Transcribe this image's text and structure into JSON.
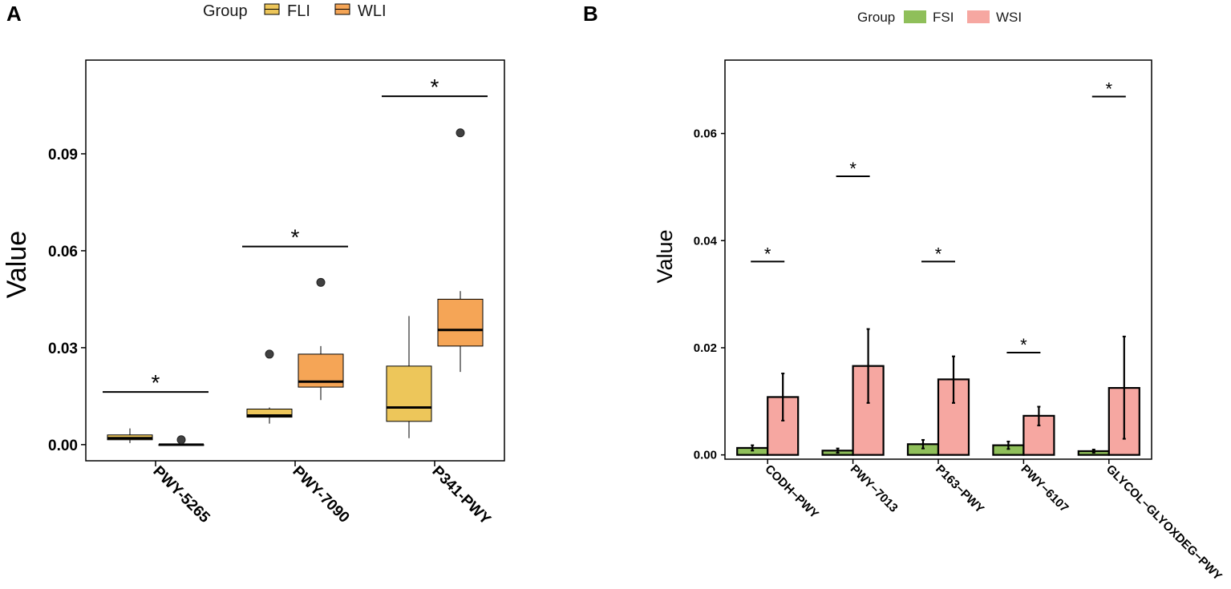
{
  "chart_data": [
    {
      "panel": "A",
      "type": "box",
      "legend_title": "Group",
      "legend": [
        {
          "name": "FLI",
          "color": "#EDC65A"
        },
        {
          "name": "WLI",
          "color": "#F5A556"
        }
      ],
      "ylabel": "Value",
      "ylim": [
        -0.005,
        0.119
      ],
      "yticks": [
        0.0,
        0.03,
        0.06,
        0.09
      ],
      "ytick_labels": [
        "0.00",
        "0.03",
        "0.06",
        "0.09"
      ],
      "categories": [
        "PWY-5265",
        "PWY-7090",
        "P341-PWY"
      ],
      "groups": [
        {
          "name": "FLI",
          "color": "#EDC65A",
          "boxes": [
            {
              "min": 0.0005,
              "q1": 0.0015,
              "median": 0.002,
              "q3": 0.003,
              "max": 0.005,
              "outliers": []
            },
            {
              "min": 0.0065,
              "q1": 0.0085,
              "median": 0.009,
              "q3": 0.011,
              "max": 0.0115,
              "outliers": [
                0.028
              ]
            },
            {
              "min": 0.002,
              "q1": 0.0072,
              "median": 0.0115,
              "q3": 0.0243,
              "max": 0.0398,
              "outliers": []
            }
          ]
        },
        {
          "name": "WLI",
          "color": "#F5A556",
          "boxes": [
            {
              "min": 0.0,
              "q1": 0.0,
              "median": 0.0,
              "q3": 0.0,
              "max": 0.0,
              "outliers": [
                0.0015
              ]
            },
            {
              "min": 0.0138,
              "q1": 0.0178,
              "median": 0.0195,
              "q3": 0.028,
              "max": 0.0305,
              "outliers": [
                0.0502
              ]
            },
            {
              "min": 0.0225,
              "q1": 0.0305,
              "median": 0.0355,
              "q3": 0.045,
              "max": 0.0475,
              "outliers": [
                0.0965
              ]
            }
          ]
        }
      ],
      "annotations": [
        {
          "category": "PWY-5265",
          "label": "*",
          "y": 0.0163
        },
        {
          "category": "PWY-7090",
          "label": "*",
          "y": 0.0613
        },
        {
          "category": "P341-PWY",
          "label": "*",
          "y": 0.1078
        }
      ]
    },
    {
      "panel": "B",
      "type": "bar",
      "legend_title": "Group",
      "legend": [
        {
          "name": "FSI",
          "color": "#8FBF5A"
        },
        {
          "name": "WSI",
          "color": "#F6A7A1"
        }
      ],
      "ylabel": "Value",
      "ylim": [
        -0.0008,
        0.0737
      ],
      "yticks": [
        0.0,
        0.02,
        0.04,
        0.06
      ],
      "ytick_labels": [
        "0.00",
        "0.02",
        "0.04",
        "0.06"
      ],
      "categories": [
        "CODH−PWY",
        "PWY−7013",
        "P163−PWY",
        "PWY−6107",
        "GLYCOL−GLYOXDEG−PWY"
      ],
      "series": [
        {
          "name": "FSI",
          "color": "#8FBF5A",
          "values": [
            0.0013,
            0.0008,
            0.002,
            0.0018,
            0.0007
          ],
          "err_low": [
            0.0008,
            0.0004,
            0.0012,
            0.0011,
            0.0004
          ],
          "err_high": [
            0.0018,
            0.0012,
            0.0028,
            0.0025,
            0.001
          ]
        },
        {
          "name": "WSI",
          "color": "#F6A7A1",
          "values": [
            0.0108,
            0.0166,
            0.0141,
            0.0073,
            0.0125
          ],
          "err_low": [
            0.0064,
            0.0097,
            0.0097,
            0.0055,
            0.003
          ],
          "err_high": [
            0.0152,
            0.0235,
            0.0184,
            0.009,
            0.0221
          ]
        }
      ],
      "annotations": [
        {
          "category": "CODH−PWY",
          "label": "*",
          "y": 0.0361
        },
        {
          "category": "PWY−7013",
          "label": "*",
          "y": 0.052
        },
        {
          "category": "P163−PWY",
          "label": "*",
          "y": 0.0361
        },
        {
          "category": "PWY−6107",
          "label": "*",
          "y": 0.0191
        },
        {
          "category": "GLYCOL−GLYOXDEG−PWY",
          "label": "*",
          "y": 0.0669
        }
      ]
    }
  ]
}
